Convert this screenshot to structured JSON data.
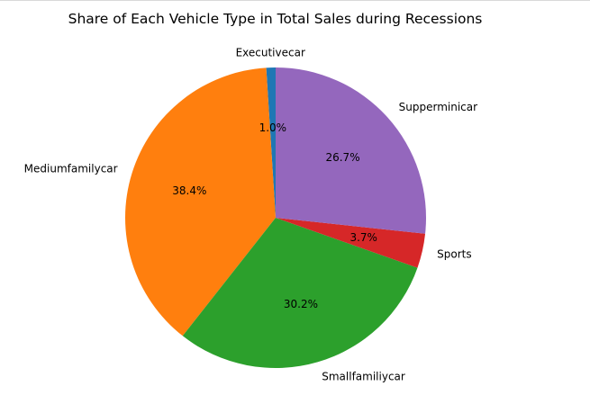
{
  "chart_data": {
    "type": "pie",
    "title": "Share of Each Vehicle Type in Total Sales during Recessions",
    "categories": [
      "Executivecar",
      "Mediumfamilycar",
      "Smallfamiliycar",
      "Sports",
      "Supperminicar"
    ],
    "values": [
      1.0,
      38.4,
      30.2,
      3.7,
      26.7
    ],
    "value_labels": [
      "1.0%",
      "38.4%",
      "30.2%",
      "3.7%",
      "26.7%"
    ],
    "colors": [
      "#1f77b4",
      "#ff7f0e",
      "#2ca02c",
      "#d62728",
      "#9467bd"
    ],
    "start_angle_deg": 90,
    "direction": "counterclockwise",
    "legend": "none"
  }
}
